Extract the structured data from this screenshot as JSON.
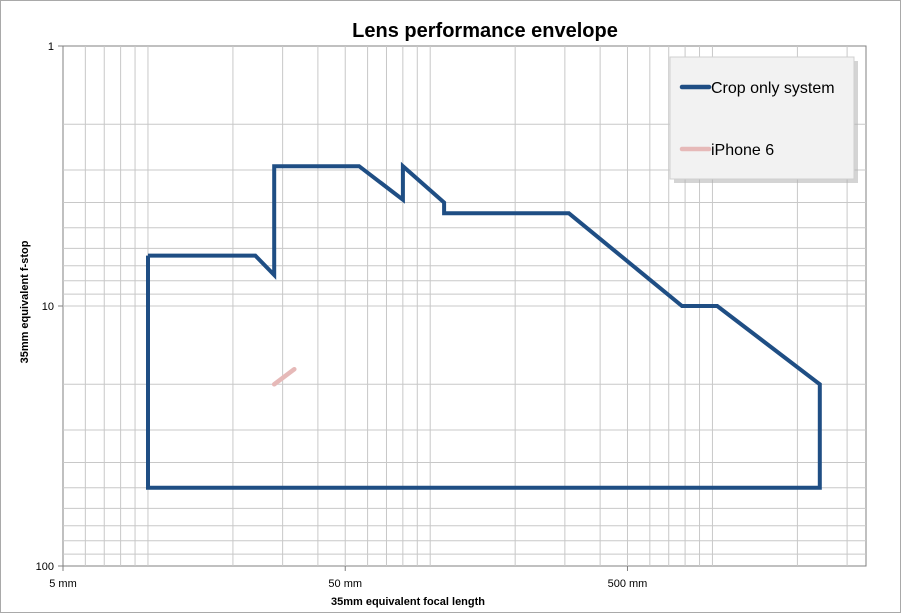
{
  "chart_data": {
    "type": "line",
    "title": "Lens performance envelope",
    "xlabel": "35mm equivalent focal length",
    "ylabel": "35mm equivalent f-stop",
    "xscale": "log",
    "yscale": "log",
    "yinverted": true,
    "xlim": [
      5,
      3500
    ],
    "ylim": [
      1,
      100
    ],
    "xticks": [
      {
        "value": 5,
        "label": "5 mm"
      },
      {
        "value": 50,
        "label": "50 mm"
      },
      {
        "value": 500,
        "label": "500 mm"
      }
    ],
    "yticks": [
      {
        "value": 1,
        "label": "1"
      },
      {
        "value": 10,
        "label": "10"
      },
      {
        "value": 100,
        "label": "100"
      }
    ],
    "grid": true,
    "legend_position": "top-right",
    "series": [
      {
        "name": "Crop only system",
        "color": "#1f4e84",
        "points": [
          [
            10,
            6.4
          ],
          [
            24,
            6.4
          ],
          [
            28,
            7.6
          ],
          [
            28,
            2.9
          ],
          [
            56,
            2.9
          ],
          [
            80,
            3.9
          ],
          [
            80,
            2.9
          ],
          [
            112,
            4.0
          ],
          [
            112,
            4.4
          ],
          [
            310,
            4.4
          ],
          [
            780,
            10.0
          ],
          [
            1040,
            10.0
          ],
          [
            2400,
            20.0
          ],
          [
            2400,
            50.0
          ],
          [
            10,
            50.0
          ],
          [
            10,
            6.4
          ]
        ]
      },
      {
        "name": "iPhone 6",
        "color": "#e6b9b8",
        "points": [
          [
            28,
            20.0
          ],
          [
            33,
            17.5
          ]
        ]
      }
    ]
  }
}
